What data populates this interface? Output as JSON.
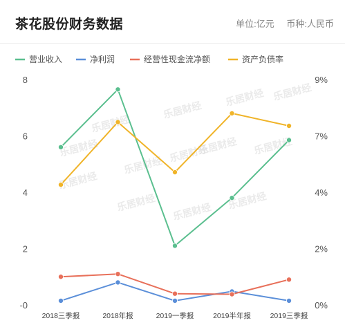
{
  "header": {
    "title": "茶花股份财务数据",
    "unit_label": "单位:亿元",
    "currency_label": "币种:人民币"
  },
  "watermark": "乐居财经",
  "chart_data": {
    "type": "line",
    "categories": [
      "2018三季报",
      "2018年报",
      "2019一季报",
      "2019半年报",
      "2019三季报"
    ],
    "y_left": {
      "ylim": [
        0,
        8
      ],
      "ticks": [
        "-0",
        "2",
        "4",
        "6",
        "8"
      ]
    },
    "y_right": {
      "ylim": [
        0,
        9
      ],
      "ticks": [
        "0%",
        "2%",
        "4%",
        "7%",
        "9%"
      ]
    },
    "series": [
      {
        "name": "营业收入",
        "axis": "left",
        "color": "#5bbf8f",
        "values": [
          5.6,
          7.65,
          2.1,
          3.8,
          5.85
        ]
      },
      {
        "name": "净利润",
        "axis": "left",
        "color": "#5b8fd9",
        "values": [
          0.15,
          0.8,
          0.15,
          0.48,
          0.15
        ]
      },
      {
        "name": "经营性现金流净额",
        "axis": "left",
        "color": "#e8705a",
        "values": [
          1.0,
          1.1,
          0.4,
          0.38,
          0.9
        ]
      },
      {
        "name": "资产负债率",
        "axis": "right",
        "color": "#f0b429",
        "values": [
          4.8,
          7.3,
          5.3,
          7.65,
          7.15
        ]
      }
    ],
    "grid": false,
    "legend_position": "top"
  }
}
